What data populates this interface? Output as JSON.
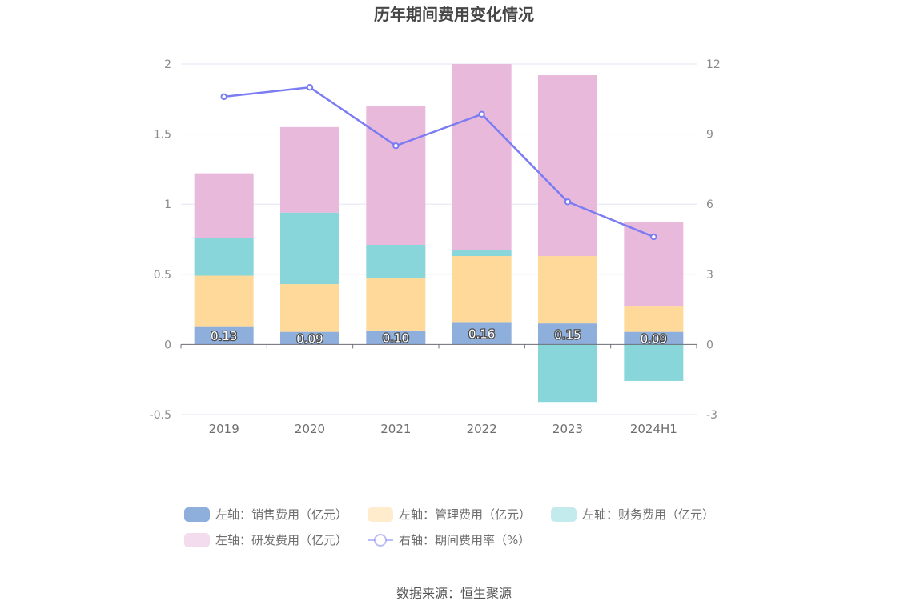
{
  "chart_data": {
    "type": "bar",
    "title": "历年期间费用变化情况",
    "categories": [
      "2019",
      "2020",
      "2021",
      "2022",
      "2023",
      "2024H1"
    ],
    "left_axis": {
      "ylim": [
        -0.5,
        2
      ],
      "ticks": [
        "2",
        "1.5",
        "1",
        "0.5",
        "0",
        "-0.5"
      ]
    },
    "right_axis": {
      "ylim": [
        -3,
        12
      ],
      "ticks": [
        "12",
        "9",
        "6",
        "3",
        "0",
        "-3"
      ]
    },
    "series": [
      {
        "name": "左轴：销售费用（亿元）",
        "axis": "left",
        "kind": "bar",
        "color": "#8eaedc",
        "values": [
          0.13,
          0.09,
          0.1,
          0.16,
          0.15,
          0.09
        ],
        "labels": [
          "0.13",
          "0.09",
          "0.10",
          "0.16",
          "0.15",
          "0.09"
        ]
      },
      {
        "name": "左轴：管理费用（亿元）",
        "axis": "left",
        "kind": "bar",
        "color": "#ffd99a",
        "values": [
          0.36,
          0.34,
          0.37,
          0.47,
          0.48,
          0.18
        ]
      },
      {
        "name": "左轴：财务费用（亿元）",
        "axis": "left",
        "kind": "bar",
        "color": "#88d6da",
        "values": [
          0.27,
          0.51,
          0.24,
          0.04,
          -0.41,
          -0.26
        ]
      },
      {
        "name": "左轴：研发费用（亿元）",
        "axis": "left",
        "kind": "bar",
        "color": "#e8b9db",
        "values": [
          0.46,
          0.61,
          0.99,
          1.33,
          1.29,
          0.6
        ]
      },
      {
        "name": "右轴：期间费用率（%）",
        "axis": "right",
        "kind": "line",
        "color": "#7b7cf2",
        "values": [
          10.6,
          11.0,
          8.5,
          9.85,
          6.1,
          4.6
        ]
      }
    ],
    "legend_position": "bottom",
    "grid": true
  },
  "source_text": "数据来源：恒生聚源"
}
